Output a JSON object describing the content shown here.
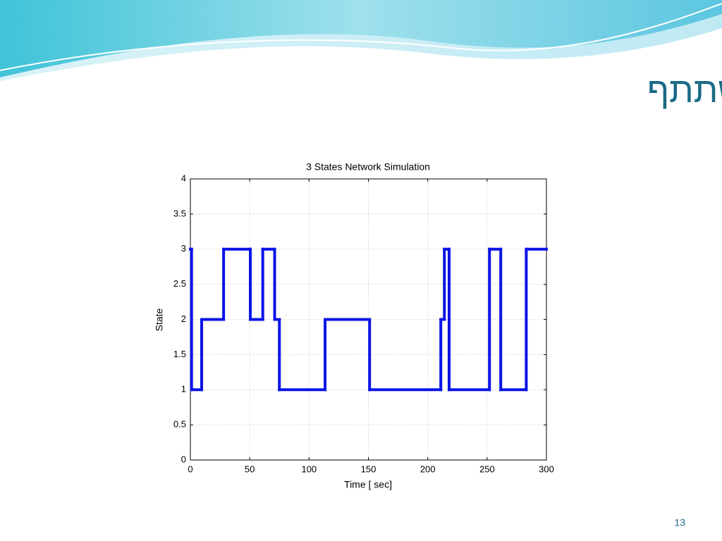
{
  "title": "מימוש מצבי הרשת והמשתתף",
  "page_number": "13",
  "chart_data": {
    "type": "step",
    "title": "3 States Network Simulation",
    "x_label": "Time [ sec]",
    "y_label": "State",
    "x": [
      0,
      1,
      9.5,
      28,
      50.5,
      61,
      71,
      75,
      113.5,
      151,
      211,
      214,
      218,
      252,
      261.5,
      283
    ],
    "values": [
      3,
      1,
      2,
      3,
      2,
      3,
      2,
      1,
      2,
      1,
      2,
      3,
      1,
      3,
      1,
      3
    ],
    "color": "#0a14e6",
    "xlim": [
      0,
      300
    ],
    "xticks": [
      0,
      50,
      100,
      150,
      200,
      250,
      300
    ],
    "ylim": [
      0,
      4
    ],
    "yticks": [
      0,
      0.5,
      1,
      1.5,
      2,
      2.5,
      3,
      3.5,
      4
    ],
    "grid": true
  }
}
